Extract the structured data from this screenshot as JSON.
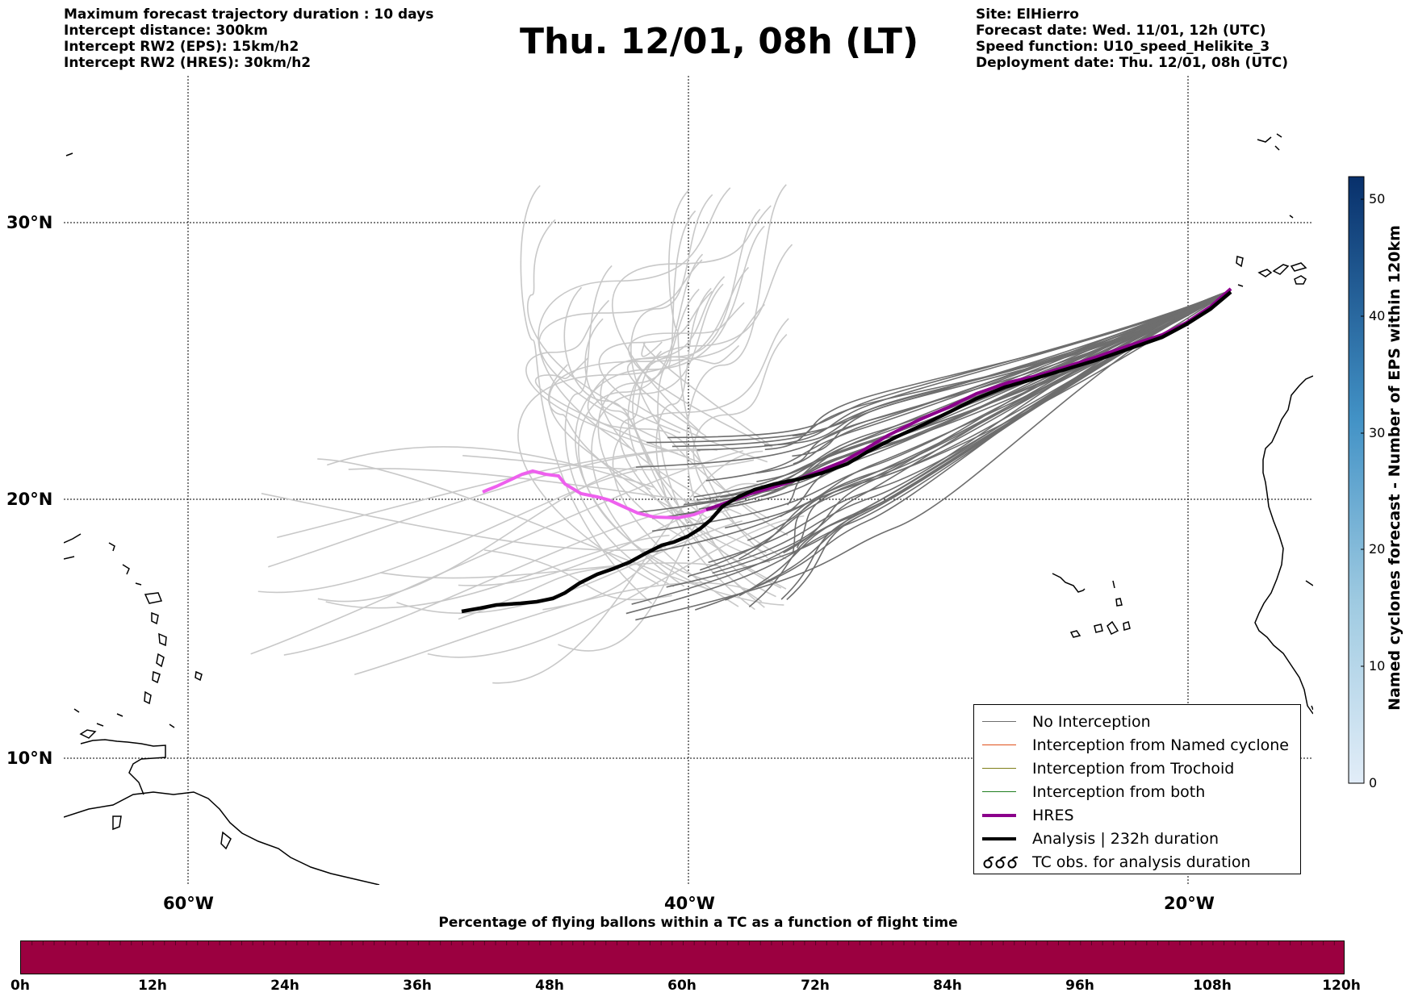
{
  "header_left": [
    "Maximum forecast trajectory duration : 10 days",
    "Intercept distance: 300km",
    "Intercept RW2 (EPS):  15km/h2",
    "Intercept RW2 (HRES): 30km/h2"
  ],
  "title": "Thu. 12/01, 08h (LT)",
  "header_right": [
    "Site: ElHierro",
    "Forecast date: Wed. 11/01, 12h (UTC)",
    "Speed function: U10_speed_Helikite_3",
    "Deployment date: Thu. 12/01, 08h (UTC)"
  ],
  "map": {
    "lat_labels": [
      "30°N",
      "20°N",
      "10°N"
    ],
    "lon_labels": [
      "60°W",
      "40°W",
      "20°W"
    ]
  },
  "legend": [
    {
      "label": "No Interception",
      "color": "#6e6e6e"
    },
    {
      "label": "Interception from Named cyclone",
      "color": "#e0501a"
    },
    {
      "label": "Interception from Trochoid",
      "color": "#7f7f1a"
    },
    {
      "label": "Interception from both",
      "color": "#1f7f1f"
    },
    {
      "label": "HRES",
      "color": "#8b008b"
    },
    {
      "label": "Analysis | 232h duration",
      "color": "#000000"
    },
    {
      "label": "TC obs. for analysis duration",
      "symbol": "cyclone-icons"
    }
  ],
  "right_colorbar": {
    "label": "Named cyclones forecast - Number of EPS within 120km",
    "ticks": [
      "0",
      "10",
      "20",
      "30",
      "40",
      "50"
    ],
    "colors": [
      "#e2edf8",
      "#08306b"
    ]
  },
  "bottom_colorbar": {
    "title": "Percentage of flying ballons within a TC as a function of flight time",
    "ticks": [
      "0h",
      "12h",
      "24h",
      "36h",
      "48h",
      "60h",
      "72h",
      "84h",
      "96h",
      "108h",
      "120h"
    ],
    "color": "#9b0040"
  }
}
